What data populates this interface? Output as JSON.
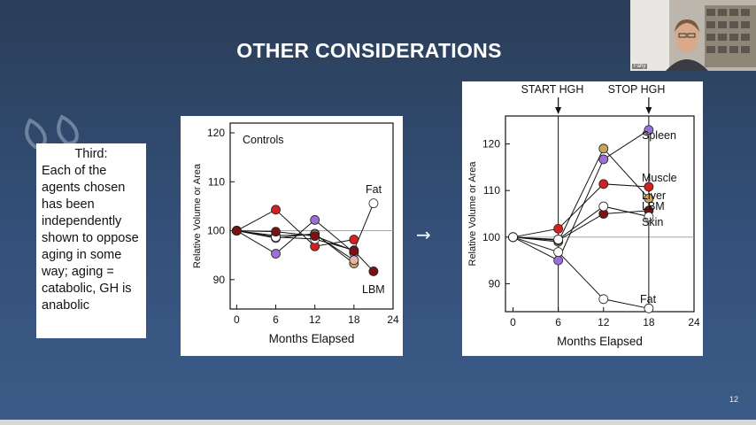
{
  "slide": {
    "title": "OTHER CONSIDERATIONS",
    "page_number": "12",
    "arrow_glyph": "→"
  },
  "text_box": {
    "heading": "Third:",
    "body": "Each of the agents chosen has been independently shown to oppose aging in some way; aging = catabolic, GH is anabolic"
  },
  "webcam": {
    "label": "Fahy"
  },
  "colors": {
    "background": "#34507a",
    "red": "#d42020",
    "purple": "#9b6fd6",
    "tan": "#c9a35a",
    "darkred": "#7a1212",
    "pink": "#e7b3a8",
    "white": "#ffffff"
  },
  "chart_data": [
    {
      "type": "line",
      "title": "",
      "annotations": [
        "Controls",
        "Fat",
        "LBM"
      ],
      "xlabel": "Months Elapsed",
      "ylabel": "Relative Volume or Area",
      "xlim": [
        -1,
        24
      ],
      "ylim": [
        84,
        122
      ],
      "xticks": [
        0,
        6,
        12,
        18,
        24
      ],
      "yticks": [
        90,
        100,
        110,
        120
      ],
      "reference_line": 100,
      "series": [
        {
          "color": "red",
          "x": [
            0,
            6,
            12,
            18
          ],
          "y": [
            100,
            104.3,
            96.8,
            98.2
          ]
        },
        {
          "color": "purple",
          "x": [
            0,
            6,
            12,
            18
          ],
          "y": [
            100,
            95.3,
            102.2,
            95.5
          ]
        },
        {
          "color": "tan",
          "x": [
            0,
            6,
            12,
            18
          ],
          "y": [
            100,
            98.5,
            99.4,
            93.3
          ]
        },
        {
          "color": "pink",
          "x": [
            0,
            6,
            12,
            18
          ],
          "y": [
            100,
            99.0,
            99.2,
            94.0
          ]
        },
        {
          "color": "white",
          "x": [
            0,
            6,
            12,
            18,
            21
          ],
          "y": [
            100,
            98.7,
            98.3,
            96.0,
            105.6
          ]
        },
        {
          "color": "darkred",
          "x": [
            0,
            6,
            12,
            18,
            21
          ],
          "y": [
            100,
            99.8,
            98.9,
            95.9,
            91.7
          ]
        }
      ]
    },
    {
      "type": "line",
      "title": "",
      "annotations": [
        "START HGH",
        "STOP HGH",
        "Spleen",
        "Muscle",
        "Liver",
        "LBM",
        "Skin",
        "Fat"
      ],
      "xlabel": "Months Elapsed",
      "ylabel": "Relative Volume or Area",
      "xlim": [
        -1,
        24
      ],
      "ylim": [
        84,
        126
      ],
      "xticks": [
        0,
        6,
        12,
        18,
        24
      ],
      "yticks": [
        90,
        100,
        110,
        120
      ],
      "reference_line": 100,
      "event_lines": [
        6,
        18
      ],
      "series": [
        {
          "name": "Spleen",
          "color": "purple",
          "x": [
            0,
            6,
            12,
            18
          ],
          "y": [
            100,
            95.0,
            116.7,
            123.0
          ]
        },
        {
          "name": "Muscle",
          "color": "red",
          "x": [
            0,
            6,
            12,
            18
          ],
          "y": [
            100,
            101.8,
            111.4,
            110.8
          ]
        },
        {
          "name": "Liver",
          "color": "tan",
          "x": [
            0,
            6,
            12,
            18
          ],
          "y": [
            100,
            99.0,
            119.0,
            108.3
          ]
        },
        {
          "name": "LBM",
          "color": "darkred",
          "x": [
            0,
            6,
            12,
            18
          ],
          "y": [
            100,
            99.3,
            105.0,
            105.7
          ]
        },
        {
          "name": "Skin",
          "color": "white",
          "x": [
            0,
            6,
            12,
            18
          ],
          "y": [
            100,
            99.5,
            106.6,
            104.4
          ]
        },
        {
          "name": "Fat",
          "color": "white",
          "x": [
            0,
            6,
            12,
            18
          ],
          "y": [
            100,
            96.8,
            86.7,
            84.7
          ]
        }
      ]
    }
  ]
}
